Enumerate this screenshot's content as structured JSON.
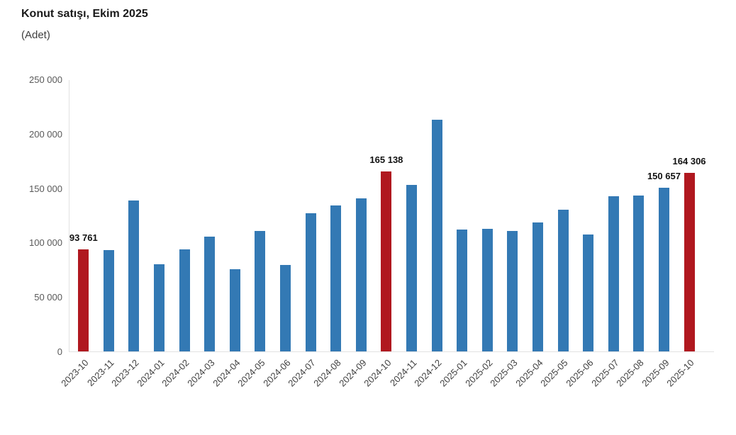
{
  "header": {
    "title": "Konut satışı, Ekim 2025",
    "subtitle": "(Adet)"
  },
  "chart_data": {
    "type": "bar",
    "title": "Konut satışı, Ekim 2025",
    "unit_label": "(Adet)",
    "xlabel": "",
    "ylabel": "",
    "categories": [
      "2023-10",
      "2023-11",
      "2023-12",
      "2024-01",
      "2024-02",
      "2024-03",
      "2024-04",
      "2024-05",
      "2024-06",
      "2024-07",
      "2024-08",
      "2024-09",
      "2024-10",
      "2024-11",
      "2024-12",
      "2025-01",
      "2025-02",
      "2025-03",
      "2025-04",
      "2025-05",
      "2025-06",
      "2025-07",
      "2025-08",
      "2025-09",
      "2025-10"
    ],
    "values": [
      93761,
      93178,
      138577,
      80308,
      93902,
      105476,
      75569,
      110588,
      79313,
      127088,
      134155,
      140919,
      165138,
      153014,
      212637,
      112173,
      112818,
      110795,
      118359,
      130025,
      107723,
      142858,
      143319,
      150657,
      164306
    ],
    "highlight_indices": [
      0,
      12,
      24
    ],
    "value_labels": {
      "0": "93 761",
      "12": "165 138",
      "23": "150 657",
      "24": "164 306"
    },
    "ylim": [
      0,
      250000
    ],
    "ytick_step": 50000,
    "yticks": [
      "0",
      "50 000",
      "100 000",
      "150 000",
      "200 000",
      "250 000"
    ],
    "grid": false,
    "legend": false,
    "colors": {
      "bar": "#3379b4",
      "highlight": "#b0181f",
      "axis_line": "#e2e2e2",
      "y_tick_text": "#595959",
      "x_tick_text": "#404040",
      "value_label_text": "#111111",
      "title_text": "#1a1a1a",
      "background": "#ffffff"
    }
  }
}
